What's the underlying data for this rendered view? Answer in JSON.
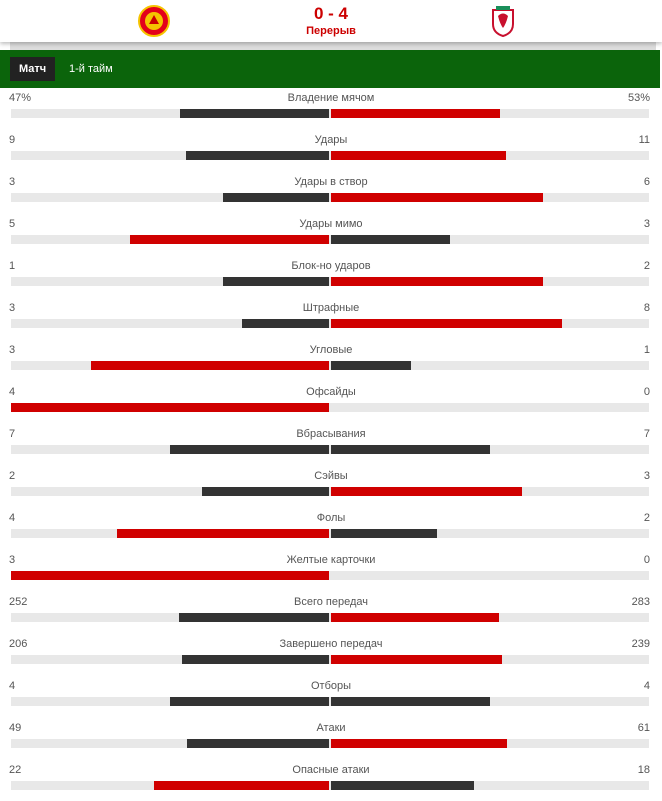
{
  "header": {
    "score": "0 - 4",
    "status": "Перерыв"
  },
  "tabs": [
    "Матч",
    "1-й тайм"
  ],
  "stats": [
    {
      "name": "Владение мячом",
      "home": {
        "value": 47,
        "label": "47%"
      },
      "away": {
        "value": 53,
        "label": "53%"
      }
    },
    {
      "name": "Удары",
      "home": 9,
      "away": 11
    },
    {
      "name": "Удары в створ",
      "home": 3,
      "away": 6
    },
    {
      "name": "Удары мимо",
      "home": 5,
      "away": 3
    },
    {
      "name": "Блок-но ударов",
      "home": 1,
      "away": 2
    },
    {
      "name": "Штрафные",
      "home": 3,
      "away": 8
    },
    {
      "name": "Угловые",
      "home": 3,
      "away": 1
    },
    {
      "name": "Офсайды",
      "home": 4,
      "away": 0
    },
    {
      "name": "Вбрасывания",
      "home": 7,
      "away": 7
    },
    {
      "name": "Сэйвы",
      "home": 2,
      "away": 3
    },
    {
      "name": "Фолы",
      "home": 4,
      "away": 2
    },
    {
      "name": "Желтые карточки",
      "home": 3,
      "away": 0
    },
    {
      "name": "Всего передач",
      "home": 252,
      "away": 283
    },
    {
      "name": "Завершено передач",
      "home": 206,
      "away": 239
    },
    {
      "name": "Отборы",
      "home": 4,
      "away": 4
    },
    {
      "name": "Атаки",
      "home": 49,
      "away": 61
    },
    {
      "name": "Опасные атаки",
      "home": 22,
      "away": 18
    }
  ]
}
